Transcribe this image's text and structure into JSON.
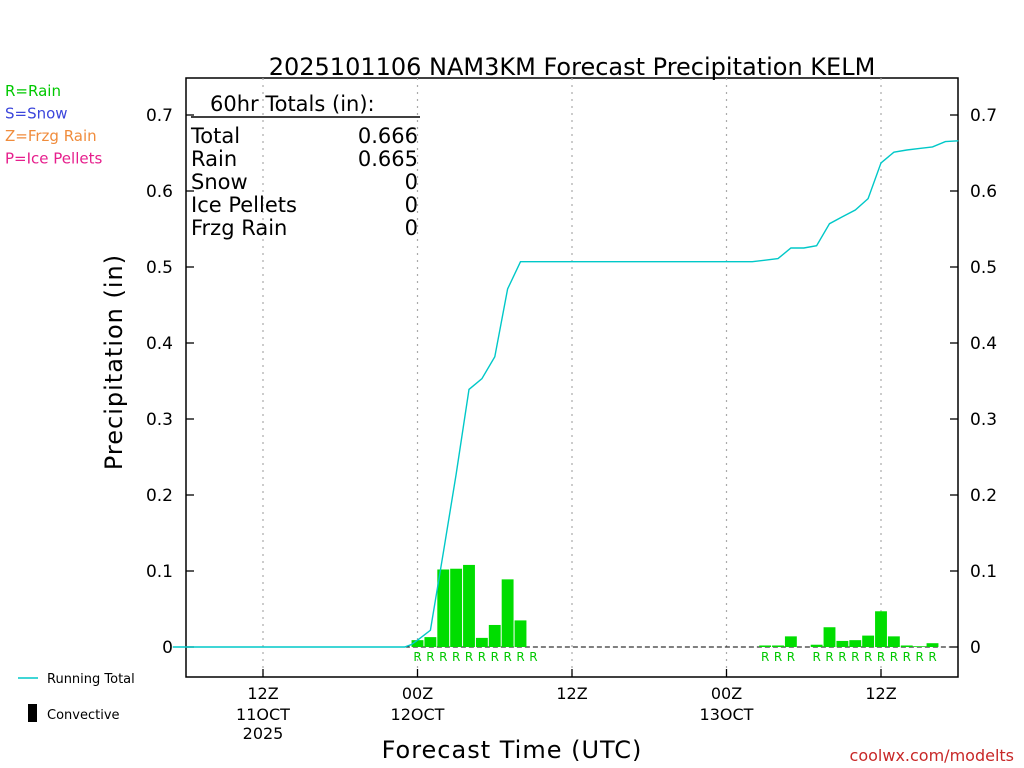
{
  "chart_data": {
    "type": "bar",
    "title": "2025101106 NAM3KM Forecast Precipitation KELM",
    "xlabel": "Forecast Time (UTC)",
    "ylabel": "Precipitation (in)",
    "ylim": [
      -0.04,
      0.74
    ],
    "xlim": [
      -2,
      61
    ],
    "yticks": [
      0,
      0.1,
      0.2,
      0.3,
      0.4,
      0.5,
      0.6,
      0.7
    ],
    "ytick_labels": [
      "0",
      "0.1",
      "0.2",
      "0.3",
      "0.4",
      "0.5",
      "0.6",
      "0.7"
    ],
    "xticks": [
      {
        "hour": 6,
        "label": "12Z",
        "date": "11OCT",
        "year": "2025"
      },
      {
        "hour": 18,
        "label": "00Z",
        "date": "12OCT",
        "year": ""
      },
      {
        "hour": 30,
        "label": "12Z",
        "date": "",
        "year": ""
      },
      {
        "hour": 42,
        "label": "00Z",
        "date": "13OCT",
        "year": ""
      },
      {
        "hour": 54,
        "label": "12Z",
        "date": "",
        "year": ""
      }
    ],
    "series": [
      {
        "name": "Rain",
        "color": "#00dd00",
        "hours": [
          18,
          19,
          20,
          21,
          22,
          23,
          24,
          25,
          26,
          27,
          45,
          46,
          47,
          48,
          49,
          50,
          51,
          52,
          53,
          54,
          55,
          56,
          57,
          58,
          59,
          60
        ],
        "values": [
          0.009,
          0.013,
          0.102,
          0.103,
          0.108,
          0.012,
          0.029,
          0.089,
          0.035,
          0,
          0.002,
          0.002,
          0.014,
          0,
          0.003,
          0.026,
          0.008,
          0.009,
          0.015,
          0.047,
          0.014,
          0.002,
          0.001,
          0.005,
          0,
          0
        ]
      },
      {
        "name": "Running Total",
        "color": "#00c8c8",
        "hours": [
          -1,
          0,
          4,
          8,
          12,
          16,
          17,
          17.5,
          18,
          19,
          20,
          21,
          22,
          23,
          24,
          25,
          26,
          27,
          31,
          35,
          39,
          43,
          44,
          45,
          46,
          47,
          48,
          49,
          50,
          51,
          52,
          53,
          54,
          55,
          56,
          57,
          58,
          59,
          60
        ],
        "values": [
          0,
          0,
          0,
          0,
          0,
          0,
          0,
          0.003,
          0.009,
          0.022,
          0.124,
          0.227,
          0.339,
          0.353,
          0.382,
          0.471,
          0.507,
          0.507,
          0.507,
          0.507,
          0.507,
          0.507,
          0.507,
          0.509,
          0.511,
          0.525,
          0.525,
          0.528,
          0.557,
          0.566,
          0.575,
          0.59,
          0.637,
          0.651,
          0.654,
          0.656,
          0.658,
          0.665,
          0.666
        ]
      }
    ],
    "precip_type_labels": [
      "R",
      "R",
      "R",
      "R",
      "R",
      "R",
      "R",
      "R",
      "R",
      "R",
      "R",
      "R",
      "R",
      "R",
      "R",
      "R",
      "R",
      "R",
      "R",
      "R",
      "R",
      "R",
      "R"
    ],
    "precip_type_hours": [
      18,
      19,
      20,
      21,
      22,
      23,
      24,
      25,
      26,
      27,
      45,
      46,
      47,
      49,
      50,
      51,
      52,
      53,
      54,
      55,
      56,
      57,
      58
    ],
    "grid": true,
    "legend_position": "top-left outside"
  },
  "totals_box": {
    "header": "60hr Totals (in):",
    "rows": [
      {
        "label": "Total",
        "value": "0.666"
      },
      {
        "label": "Rain",
        "value": "0.665"
      },
      {
        "label": "Snow",
        "value": "0"
      },
      {
        "label": "Ice Pellets",
        "value": "0"
      },
      {
        "label": "Frzg Rain",
        "value": "0"
      }
    ]
  },
  "type_legend": [
    {
      "text": "R=Rain",
      "color": "#00c800"
    },
    {
      "text": "S=Snow",
      "color": "#3c46dc"
    },
    {
      "text": "Z=Frzg Rain",
      "color": "#f08c3c"
    },
    {
      "text": "P=Ice Pellets",
      "color": "#e61e8c"
    }
  ],
  "bottom_legend": {
    "running_total": "Running Total",
    "convective": "Convective"
  },
  "credit": "coolwx.com/modelts",
  "colors": {
    "rain_bar": "#00dd00",
    "running_total": "#00c8c8",
    "ptype_label": "#00c800",
    "credit": "#c82828"
  }
}
